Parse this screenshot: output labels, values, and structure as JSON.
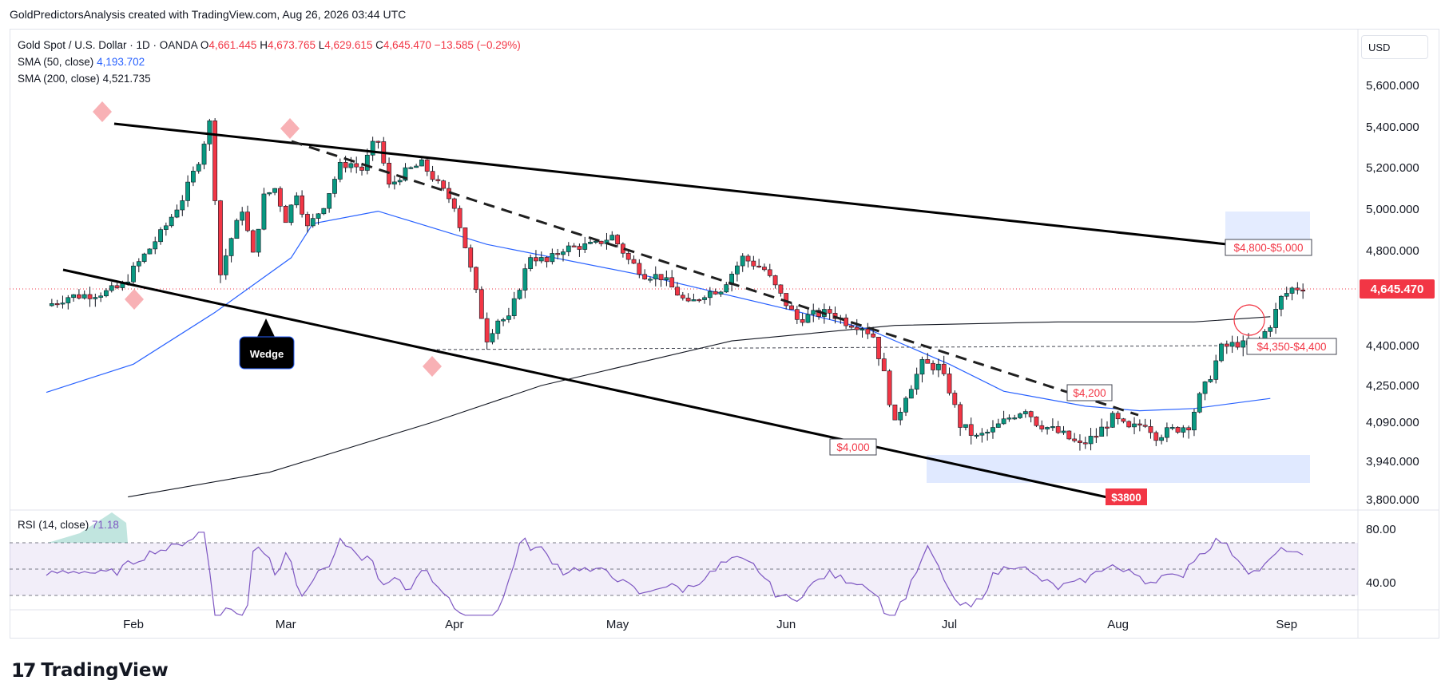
{
  "header": {
    "text": "GoldPredictorsAnalysis created with TradingView.com, Aug 26, 2026 03:44 UTC"
  },
  "legend": {
    "symbol": "Gold Spot / U.S. Dollar · 1D · OANDA",
    "o_label": "O",
    "o": "4,661.445",
    "h_label": "H",
    "h": "4,673.765",
    "l_label": "L",
    "l": "4,629.615",
    "c_label": "C",
    "c": "4,645.470",
    "change": "−13.585 (−0.29%)",
    "sma50_label": "SMA (50, close)",
    "sma50": "4,193.702",
    "sma200_label": "SMA (200, close)",
    "sma200": "4,521.735"
  },
  "currency": "USD",
  "rsi_legend": {
    "label": "RSI (14, close)",
    "value": "71.18"
  },
  "footer": {
    "logo_mark": "17",
    "logo_text": "TradingView"
  },
  "colors": {
    "up": "#089981",
    "down": "#f23645",
    "sma50": "#2962ff",
    "sma200": "#131722",
    "rsi": "#7e57c2",
    "zone": "#dbe5ff",
    "price_tag": "#f23645"
  },
  "chart_data": {
    "type": "line",
    "title": "Gold Spot / U.S. Dollar · 1D · OANDA",
    "x_ticks": [
      "Feb",
      "Mar",
      "Apr",
      "May",
      "Jun",
      "Jul",
      "Aug",
      "Sep"
    ],
    "y_ticks": [
      "5,600.000",
      "5,400.000",
      "5,200.000",
      "5,000.000",
      "4,800.000",
      "4,400.000",
      "4,250.000",
      "4,090.000",
      "3,940.000",
      "3,800.000"
    ],
    "ylim": [
      3780,
      5720
    ],
    "last_price": "4,645.470",
    "series": [
      {
        "name": "SMA (50, close)",
        "points": [
          [
            -16,
            4220
          ],
          [
            0,
            4330
          ],
          [
            15,
            4540
          ],
          [
            29,
            4770
          ],
          [
            33,
            4930
          ],
          [
            45,
            4990
          ],
          [
            65,
            4830
          ],
          [
            95,
            4690
          ],
          [
            120,
            4555
          ],
          [
            135,
            4470
          ],
          [
            150,
            4330
          ],
          [
            160,
            4225
          ],
          [
            175,
            4160
          ],
          [
            185,
            4140
          ],
          [
            195,
            4150
          ],
          [
            209,
            4193.7
          ]
        ]
      },
      {
        "name": "SMA (200, close)",
        "points": [
          [
            -1,
            3810
          ],
          [
            25,
            3900
          ],
          [
            55,
            4090
          ],
          [
            75,
            4250
          ],
          [
            110,
            4420
          ],
          [
            140,
            4485
          ],
          [
            170,
            4500
          ],
          [
            195,
            4500
          ],
          [
            209,
            4521.7
          ]
        ]
      },
      {
        "name": "Price",
        "points": [
          [
            -16,
            4568
          ],
          [
            -12,
            4606
          ],
          [
            -8,
            4615
          ],
          [
            -5,
            4625
          ],
          [
            -2,
            4650
          ],
          [
            0,
            4720
          ],
          [
            3,
            4810
          ],
          [
            6,
            4920
          ],
          [
            9,
            5050
          ],
          [
            12,
            5235
          ],
          [
            14,
            5420
          ],
          [
            15,
            5060
          ],
          [
            16,
            4700
          ],
          [
            18,
            4860
          ],
          [
            20,
            5000
          ],
          [
            22,
            4780
          ],
          [
            24,
            5060
          ],
          [
            26,
            5100
          ],
          [
            28,
            4950
          ],
          [
            30,
            5080
          ],
          [
            32,
            4910
          ],
          [
            35,
            5020
          ],
          [
            38,
            5210
          ],
          [
            40,
            5220
          ],
          [
            42,
            5190
          ],
          [
            44,
            5310
          ],
          [
            45,
            5330
          ],
          [
            47,
            5110
          ],
          [
            50,
            5180
          ],
          [
            53,
            5220
          ],
          [
            56,
            5120
          ],
          [
            59,
            5020
          ],
          [
            61,
            4820
          ],
          [
            63,
            4620
          ],
          [
            65,
            4430
          ],
          [
            67,
            4510
          ],
          [
            69,
            4510
          ],
          [
            71,
            4650
          ],
          [
            73,
            4780
          ],
          [
            76,
            4750
          ],
          [
            79,
            4810
          ],
          [
            82,
            4820
          ],
          [
            85,
            4830
          ],
          [
            88,
            4870
          ],
          [
            91,
            4760
          ],
          [
            94,
            4700
          ],
          [
            97,
            4690
          ],
          [
            100,
            4620
          ],
          [
            102,
            4570
          ],
          [
            105,
            4620
          ],
          [
            108,
            4640
          ],
          [
            112,
            4770
          ],
          [
            116,
            4720
          ],
          [
            119,
            4610
          ],
          [
            122,
            4510
          ],
          [
            125,
            4530
          ],
          [
            128,
            4540
          ],
          [
            131,
            4500
          ],
          [
            134,
            4480
          ],
          [
            136,
            4440
          ],
          [
            138,
            4290
          ],
          [
            140,
            4080
          ],
          [
            142,
            4210
          ],
          [
            145,
            4330
          ],
          [
            148,
            4320
          ],
          [
            150,
            4230
          ],
          [
            152,
            4080
          ],
          [
            155,
            4030
          ],
          [
            158,
            4060
          ],
          [
            161,
            4110
          ],
          [
            164,
            4150
          ],
          [
            166,
            4090
          ],
          [
            168,
            4070
          ],
          [
            171,
            4040
          ],
          [
            174,
            4000
          ],
          [
            177,
            4040
          ],
          [
            180,
            4110
          ],
          [
            183,
            4060
          ],
          [
            186,
            4090
          ],
          [
            188,
            4040
          ],
          [
            191,
            4060
          ],
          [
            194,
            4080
          ],
          [
            196,
            4200
          ],
          [
            198,
            4290
          ],
          [
            200,
            4390
          ],
          [
            203,
            4410
          ],
          [
            206,
            4390
          ],
          [
            209,
            4490
          ],
          [
            211,
            4600
          ],
          [
            213,
            4640
          ],
          [
            215,
            4645.47
          ]
        ]
      }
    ],
    "rsi": {
      "name": "RSI (14, close)",
      "last": "71.18",
      "levels": [
        "80.00",
        "40.00"
      ]
    },
    "annotations": [
      {
        "type": "label",
        "text": "Wedge"
      },
      {
        "type": "label",
        "text": "$4,800-$5,000"
      },
      {
        "type": "label",
        "text": "$4,350-$4,400"
      },
      {
        "type": "label",
        "text": "$4,200"
      },
      {
        "type": "label",
        "text": "$4,000"
      },
      {
        "type": "label",
        "text": "$3800"
      }
    ]
  }
}
